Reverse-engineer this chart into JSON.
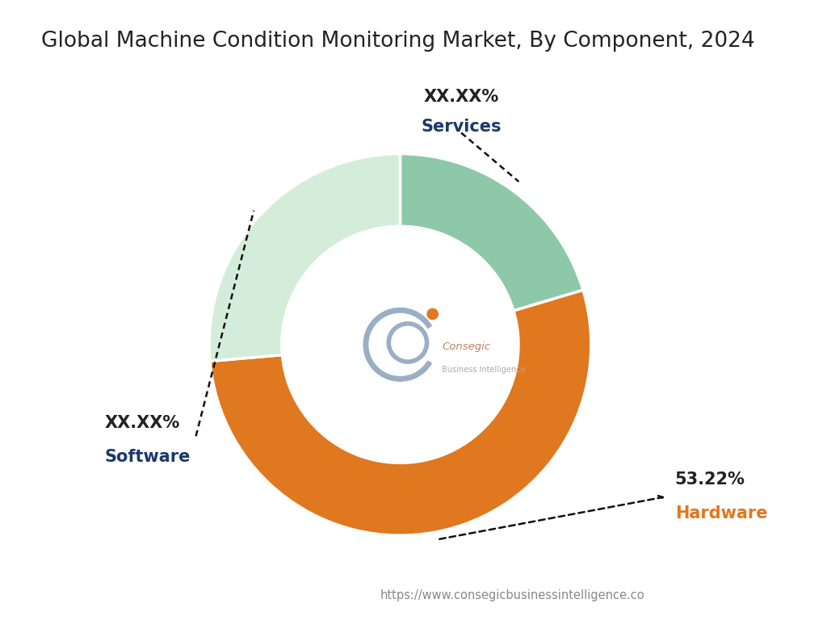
{
  "title": "Global Machine Condition Monitoring Market, By Component, 2024",
  "title_fontsize": 19,
  "title_color": "#222222",
  "segments": [
    {
      "label": "Hardware",
      "value": 53.22,
      "color": "#E07820",
      "display_pct": "53.22%",
      "pct_color": "#222222",
      "label_color": "#E07820"
    },
    {
      "label": "Software",
      "value": 26.39,
      "color": "#D4EDDA",
      "display_pct": "XX.XX%",
      "pct_color": "#222222",
      "label_color": "#1a3a6b"
    },
    {
      "label": "Services",
      "value": 20.39,
      "color": "#8DC9A8",
      "display_pct": "XX.XX%",
      "pct_color": "#222222",
      "label_color": "#1a3a6b"
    }
  ],
  "donut_width": 0.38,
  "center_text_consegic": "Consegic",
  "center_text_bi": "Business Intelligence",
  "url_text": "https://www.consegicbusinessintelligence.co",
  "background_color": "#ffffff"
}
